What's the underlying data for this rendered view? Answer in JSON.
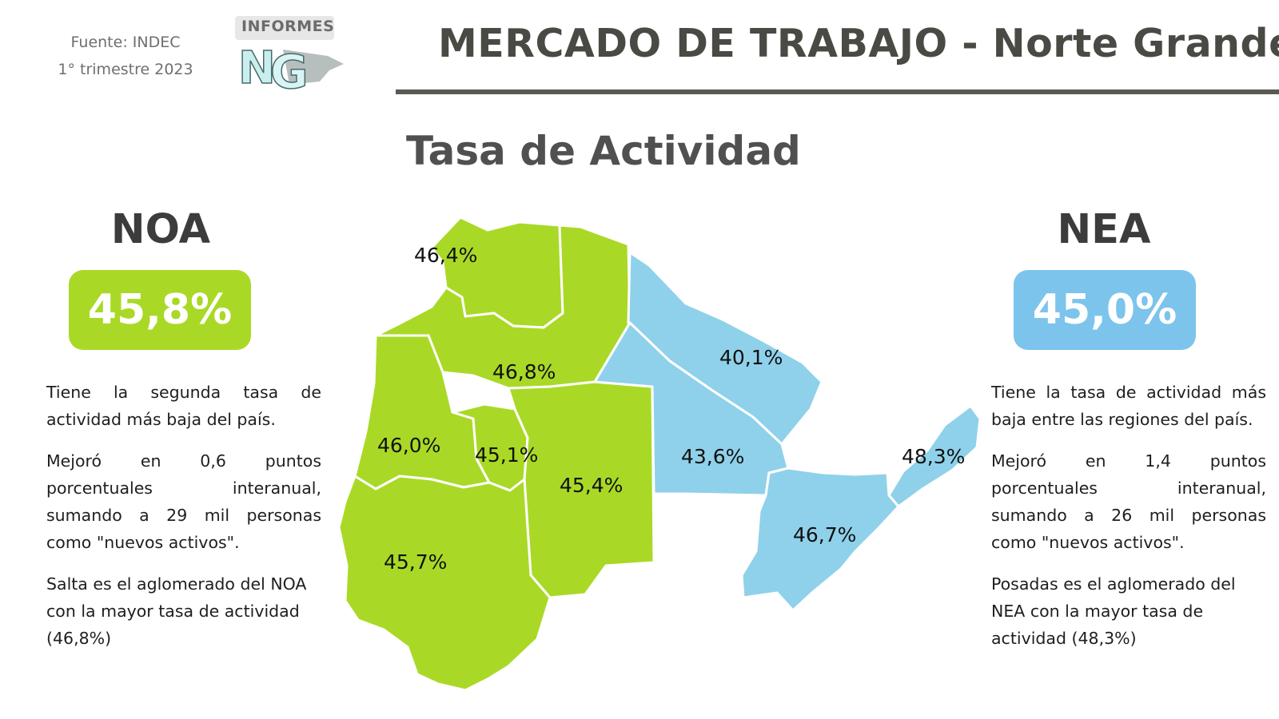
{
  "header": {
    "source_line1": "Fuente: INDEC",
    "source_line2": "1° trimestre 2023",
    "logo_word": "INFORMES",
    "title": "MERCADO DE TRABAJO - Norte Grande"
  },
  "subtitle": "Tasa de Actividad",
  "noa": {
    "name": "NOA",
    "rate": "45,8%",
    "color": "#a9d926",
    "paragraphs": [
      "Tiene la segunda tasa de actividad más baja del país.",
      "Mejoró en 0,6 puntos porcentuales interanual, sumando a 29 mil personas como \"nuevos activos\".",
      "Salta es el aglomerado del NOA con la mayor tasa de actividad (46,8%)"
    ]
  },
  "nea": {
    "name": "NEA",
    "rate": "45,0%",
    "color": "#7cc4ec",
    "paragraphs": [
      "Tiene la tasa de actividad más baja entre las regiones del país.",
      "Mejoró en 1,4 puntos porcentuales interanual, sumando a 26 mil personas como \"nuevos activos\".",
      "Posadas es el aglomerado del NEA con la mayor tasa de actividad (48,3%)"
    ]
  },
  "map": {
    "provinces": [
      {
        "id": "jujuy",
        "region": "NOA",
        "value": "46,4%"
      },
      {
        "id": "salta",
        "region": "NOA",
        "value": "46,8%"
      },
      {
        "id": "catamarca",
        "region": "NOA",
        "value": "46,0%"
      },
      {
        "id": "tucuman",
        "region": "NOA",
        "value": "45,1%"
      },
      {
        "id": "santiago-del-estero",
        "region": "NOA",
        "value": "45,4%"
      },
      {
        "id": "la-rioja",
        "region": "NOA",
        "value": "45,7%"
      },
      {
        "id": "formosa",
        "region": "NEA",
        "value": "40,1%"
      },
      {
        "id": "chaco",
        "region": "NEA",
        "value": "43,6%"
      },
      {
        "id": "misiones",
        "region": "NEA",
        "value": "48,3%"
      },
      {
        "id": "corrientes",
        "region": "NEA",
        "value": "46,7%"
      }
    ]
  }
}
